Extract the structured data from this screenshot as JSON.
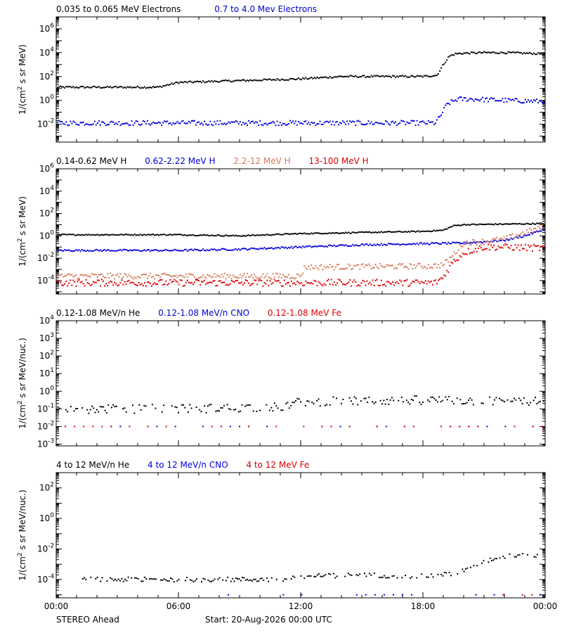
{
  "footer": {
    "spacecraft": "STEREO Ahead",
    "start": "Start: 20-Aug-2026 00:00 UTC"
  },
  "colors": {
    "black": "#000000",
    "blue": "#0000dd",
    "salmon": "#d7785a",
    "red": "#dd0000"
  },
  "chart_data": [
    {
      "type": "scatter",
      "ylabel_base": "1/(cm",
      "ylabel_sup": "2",
      "ylabel_rest": " s sr MeV)",
      "ylim_exp": [
        -3.5,
        7
      ],
      "y_tick_exponents": [
        -2,
        0,
        2,
        4,
        6
      ],
      "xlim_hours": [
        0,
        24
      ],
      "x_tick_labels": [
        "00:00",
        "06:00",
        "12:00",
        "18:00",
        "00:00"
      ],
      "series": [
        {
          "name": "0.035 to 0.065 MeV Electrons",
          "color": "#000000",
          "x_hours": [
            0,
            5,
            5.5,
            6,
            8,
            10,
            12,
            14,
            16,
            18,
            18.7,
            19,
            19.3,
            19.6,
            20,
            21,
            22,
            23,
            24
          ],
          "log10_flux": [
            1.1,
            1.1,
            1.3,
            1.5,
            1.6,
            1.7,
            1.8,
            2.0,
            2.0,
            2.0,
            2.1,
            3.0,
            3.7,
            3.9,
            3.95,
            4.0,
            4.0,
            3.95,
            3.9
          ],
          "scatter": 0.08
        },
        {
          "name": "0.7 to 4.0 Mev Electrons",
          "color": "#0000dd",
          "x_hours": [
            0,
            18.6,
            18.8,
            19.2,
            19.7,
            20.5,
            22,
            24
          ],
          "log10_flux": [
            -1.9,
            -1.9,
            -1.5,
            -0.3,
            0.1,
            0.1,
            0.0,
            -0.1
          ],
          "scatter": 0.2
        }
      ]
    },
    {
      "type": "scatter",
      "ylabel_base": "1/(cm",
      "ylabel_sup": "2",
      "ylabel_rest": " s sr MeV)",
      "ylim_exp": [
        -5.2,
        6
      ],
      "y_tick_exponents": [
        -4,
        -2,
        0,
        2,
        4,
        6
      ],
      "xlim_hours": [
        0,
        24
      ],
      "x_tick_labels": [
        "00:00",
        "06:00",
        "12:00",
        "18:00",
        "00:00"
      ],
      "series": [
        {
          "name": "0.14-0.62 MeV H",
          "color": "#000000",
          "x_hours": [
            0,
            6,
            9,
            12,
            15,
            18,
            19,
            19.5,
            20,
            22,
            24
          ],
          "log10_flux": [
            0.1,
            0.1,
            0.0,
            0.2,
            0.3,
            0.4,
            0.5,
            0.9,
            1.0,
            1.05,
            1.1
          ],
          "scatter": 0.05
        },
        {
          "name": "0.62-2.22 MeV H",
          "color": "#0000dd",
          "x_hours": [
            0,
            3,
            6,
            9,
            12,
            15,
            18,
            20,
            22,
            23,
            24
          ],
          "log10_flux": [
            -1.3,
            -1.3,
            -1.3,
            -1.2,
            -1.0,
            -0.8,
            -0.7,
            -0.65,
            -0.4,
            0.0,
            0.6
          ],
          "scatter": 0.08
        },
        {
          "name": "2.2-12 MeV H",
          "color": "#d7785a",
          "x_hours": [
            0,
            12,
            12.2,
            18.5,
            19,
            19.5,
            20,
            21,
            22,
            23,
            24
          ],
          "log10_flux": [
            -3.6,
            -3.6,
            -2.8,
            -2.7,
            -2.6,
            -1.7,
            -0.6,
            -0.5,
            -0.3,
            0.3,
            0.8
          ],
          "scatter": 0.25
        },
        {
          "name": "13-100 MeV H",
          "color": "#dd0000",
          "x_hours": [
            0,
            18.6,
            19,
            19.4,
            20,
            21,
            22,
            24
          ],
          "log10_flux": [
            -4.2,
            -4.2,
            -3.7,
            -2.5,
            -1.5,
            -1.0,
            -1.0,
            -1.1
          ],
          "scatter": 0.3
        }
      ]
    },
    {
      "type": "scatter",
      "ylabel_base": "1/(cm",
      "ylabel_sup": "2",
      "ylabel_rest": " s sr MeV/nuc.)",
      "ylim_exp": [
        -3.1,
        4
      ],
      "y_tick_exponents": [
        -3,
        -2,
        -1,
        0,
        1,
        2,
        3,
        4
      ],
      "xlim_hours": [
        0,
        24
      ],
      "x_tick_labels": [
        "00:00",
        "06:00",
        "12:00",
        "18:00",
        "00:00"
      ],
      "series": [
        {
          "name": "0.12-1.08 MeV/n He",
          "color": "#000000",
          "x_hours": [
            0,
            6,
            11,
            12,
            18,
            24
          ],
          "log10_flux": [
            -1.0,
            -1.0,
            -0.9,
            -0.6,
            -0.5,
            -0.6
          ],
          "scatter": 0.25
        },
        {
          "name": "0.12-1.08 MeV/n CNO",
          "color": "#0000dd",
          "x_hours": [
            0,
            24
          ],
          "log10_flux": [
            -2.0,
            -2.0
          ],
          "scatter": 0.0
        },
        {
          "name": "0.12-1.08 MeV Fe",
          "color": "#dd0000",
          "x_hours": [
            0,
            24
          ],
          "log10_flux": [
            -2.0,
            -2.0
          ],
          "scatter": 0.0
        }
      ]
    },
    {
      "type": "scatter",
      "ylabel_base": "1/(cm",
      "ylabel_sup": "2",
      "ylabel_rest": " s sr MeV/nuc.)",
      "ylim_exp": [
        -5.2,
        3
      ],
      "y_tick_exponents": [
        -4,
        -2,
        0,
        2
      ],
      "xlim_hours": [
        0,
        24
      ],
      "x_tick_labels": [
        "00:00",
        "06:00",
        "12:00",
        "18:00",
        "00:00"
      ],
      "series": [
        {
          "name": "4 to 12 MeV/n He",
          "color": "#000000",
          "x_hours": [
            1.3,
            11,
            12,
            15,
            18,
            19.5,
            20.5,
            21.5,
            22.5,
            24
          ],
          "log10_flux": [
            -4.0,
            -4.0,
            -3.8,
            -3.7,
            -3.8,
            -3.6,
            -3.2,
            -2.6,
            -2.4,
            -2.4
          ],
          "scatter": 0.15
        },
        {
          "name": "4 to 12 MeV/n CNO",
          "color": "#0000dd",
          "x_hours": [
            8,
            24
          ],
          "log10_flux": [
            -5.0,
            -5.0
          ],
          "scatter": 0.0
        },
        {
          "name": "4 to 12 MeV Fe",
          "color": "#dd0000",
          "x_hours": [
            22,
            24
          ],
          "log10_flux": [
            -5.0,
            -5.0
          ],
          "scatter": 0.0
        }
      ]
    }
  ]
}
